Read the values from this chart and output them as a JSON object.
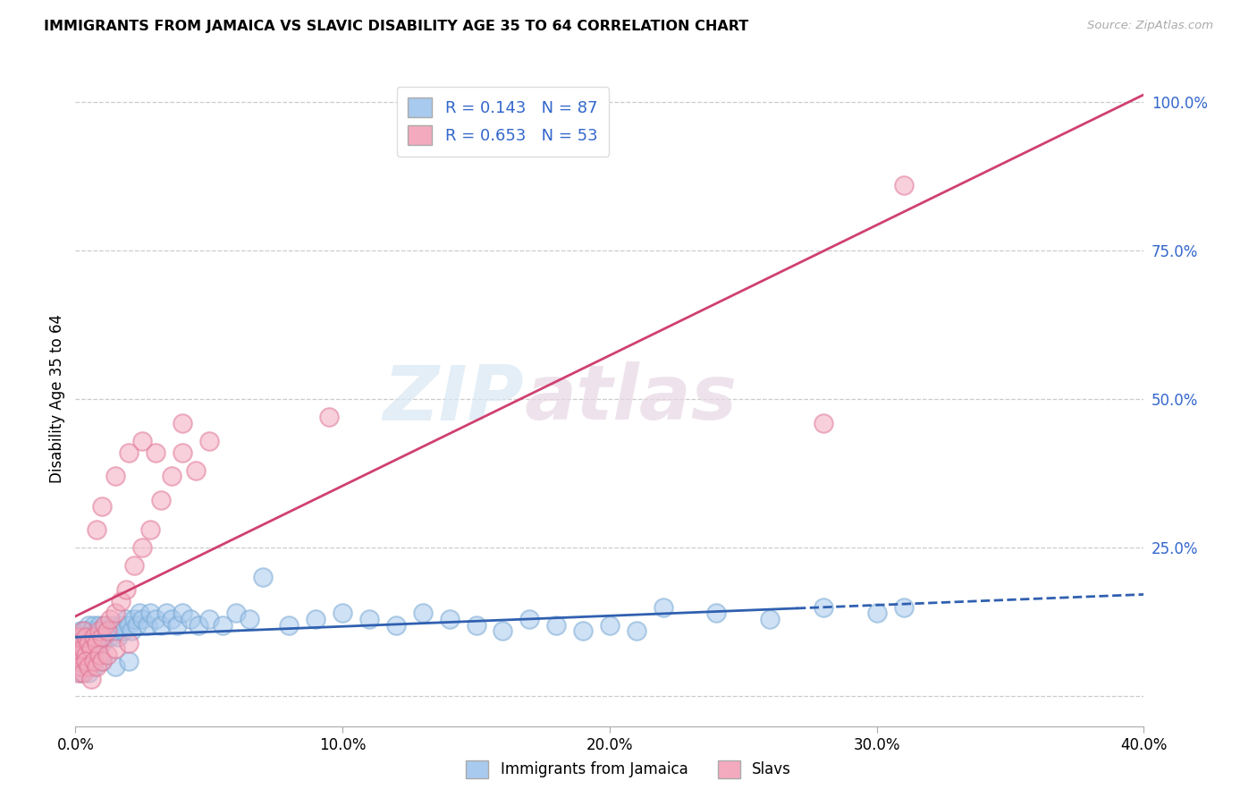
{
  "title": "IMMIGRANTS FROM JAMAICA VS SLAVIC DISABILITY AGE 35 TO 64 CORRELATION CHART",
  "source": "Source: ZipAtlas.com",
  "ylabel": "Disability Age 35 to 64",
  "watermark_zip": "ZIP",
  "watermark_atlas": "atlas",
  "series1_label": "Immigrants from Jamaica",
  "series2_label": "Slavs",
  "series1_color": "#A8CAEE",
  "series2_color": "#F4AABE",
  "series1_edge": "#7AAAD4",
  "series2_edge": "#E07898",
  "series1_line_color": "#3060B0",
  "series2_line_color": "#D04070",
  "xlim": [
    0.0,
    0.4
  ],
  "ylim": [
    -0.05,
    1.05
  ],
  "plot_ylim": [
    0.0,
    1.0
  ],
  "xticks": [
    0.0,
    0.1,
    0.2,
    0.3,
    0.4
  ],
  "yticks": [
    0.0,
    0.25,
    0.5,
    0.75,
    1.0
  ],
  "xtick_labels": [
    "0.0%",
    "10.0%",
    "20.0%",
    "30.0%",
    "40.0%"
  ],
  "ytick_labels": [
    "",
    "25.0%",
    "50.0%",
    "75.0%",
    "100.0%"
  ],
  "jamaica_R": 0.143,
  "slavic_R": 0.653,
  "jamaica_N": 87,
  "slavic_N": 53,
  "jamaica_x": [
    0.0005,
    0.001,
    0.001,
    0.0015,
    0.0015,
    0.002,
    0.002,
    0.002,
    0.0025,
    0.003,
    0.003,
    0.003,
    0.004,
    0.004,
    0.004,
    0.005,
    0.005,
    0.005,
    0.006,
    0.006,
    0.007,
    0.007,
    0.007,
    0.008,
    0.008,
    0.009,
    0.009,
    0.01,
    0.01,
    0.011,
    0.011,
    0.012,
    0.013,
    0.014,
    0.015,
    0.016,
    0.017,
    0.018,
    0.019,
    0.02,
    0.021,
    0.022,
    0.023,
    0.024,
    0.025,
    0.027,
    0.028,
    0.03,
    0.032,
    0.034,
    0.036,
    0.038,
    0.04,
    0.043,
    0.046,
    0.05,
    0.055,
    0.06,
    0.065,
    0.07,
    0.08,
    0.09,
    0.1,
    0.11,
    0.12,
    0.13,
    0.14,
    0.15,
    0.16,
    0.17,
    0.18,
    0.19,
    0.2,
    0.21,
    0.22,
    0.24,
    0.26,
    0.28,
    0.3,
    0.31,
    0.002,
    0.003,
    0.005,
    0.007,
    0.01,
    0.015,
    0.02
  ],
  "jamaica_y": [
    0.07,
    0.08,
    0.1,
    0.06,
    0.09,
    0.07,
    0.09,
    0.11,
    0.08,
    0.07,
    0.09,
    0.11,
    0.07,
    0.09,
    0.11,
    0.08,
    0.1,
    0.12,
    0.09,
    0.11,
    0.08,
    0.1,
    0.12,
    0.09,
    0.11,
    0.1,
    0.12,
    0.09,
    0.11,
    0.1,
    0.12,
    0.11,
    0.1,
    0.12,
    0.11,
    0.1,
    0.12,
    0.11,
    0.13,
    0.12,
    0.11,
    0.13,
    0.12,
    0.14,
    0.13,
    0.12,
    0.14,
    0.13,
    0.12,
    0.14,
    0.13,
    0.12,
    0.14,
    0.13,
    0.12,
    0.13,
    0.12,
    0.14,
    0.13,
    0.2,
    0.12,
    0.13,
    0.14,
    0.13,
    0.12,
    0.14,
    0.13,
    0.12,
    0.11,
    0.13,
    0.12,
    0.11,
    0.12,
    0.11,
    0.15,
    0.14,
    0.13,
    0.15,
    0.14,
    0.15,
    0.04,
    0.05,
    0.04,
    0.05,
    0.06,
    0.05,
    0.06
  ],
  "slavic_x": [
    0.0005,
    0.001,
    0.001,
    0.0015,
    0.002,
    0.002,
    0.003,
    0.003,
    0.004,
    0.004,
    0.005,
    0.006,
    0.007,
    0.008,
    0.009,
    0.01,
    0.011,
    0.012,
    0.013,
    0.015,
    0.017,
    0.019,
    0.022,
    0.025,
    0.028,
    0.032,
    0.036,
    0.04,
    0.045,
    0.05,
    0.001,
    0.002,
    0.003,
    0.004,
    0.005,
    0.006,
    0.007,
    0.008,
    0.009,
    0.01,
    0.012,
    0.015,
    0.02,
    0.008,
    0.01,
    0.015,
    0.02,
    0.025,
    0.03,
    0.04,
    0.095,
    0.28,
    0.31
  ],
  "slavic_y": [
    0.06,
    0.07,
    0.1,
    0.08,
    0.07,
    0.1,
    0.08,
    0.11,
    0.07,
    0.1,
    0.09,
    0.08,
    0.1,
    0.09,
    0.11,
    0.1,
    0.12,
    0.11,
    0.13,
    0.14,
    0.16,
    0.18,
    0.22,
    0.25,
    0.28,
    0.33,
    0.37,
    0.41,
    0.38,
    0.43,
    0.04,
    0.05,
    0.04,
    0.06,
    0.05,
    0.03,
    0.06,
    0.05,
    0.07,
    0.06,
    0.07,
    0.08,
    0.09,
    0.28,
    0.32,
    0.37,
    0.41,
    0.43,
    0.41,
    0.46,
    0.47,
    0.46,
    0.86
  ]
}
